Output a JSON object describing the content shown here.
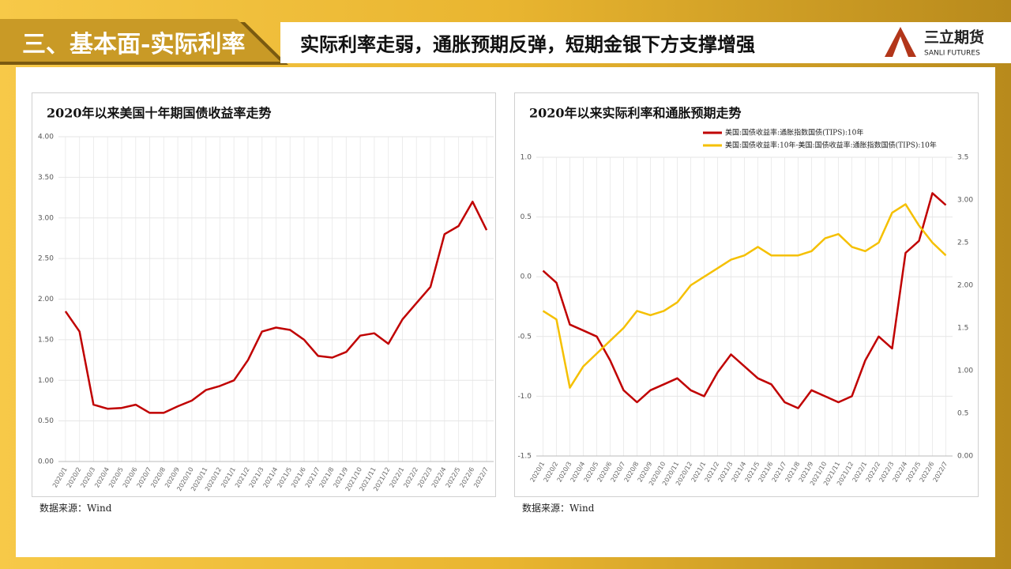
{
  "header": {
    "section": "三、基本面-实际利率",
    "title": "实际利率走弱，通胀预期反弹，短期金银下方支撑增强",
    "logo": "三立期货",
    "logo_en": "SANLI FUTURES"
  },
  "chart_data": [
    {
      "type": "line",
      "title": "2020年以来美国十年期国债收益率走势",
      "categories": [
        "2020/1",
        "2020/2",
        "2020/3",
        "2020/4",
        "2020/5",
        "2020/6",
        "2020/7",
        "2020/8",
        "2020/9",
        "2020/10",
        "2020/11",
        "2020/12",
        "2021/1",
        "2021/2",
        "2021/3",
        "2021/4",
        "2021/5",
        "2021/6",
        "2021/7",
        "2021/8",
        "2021/9",
        "2021/10",
        "2021/11",
        "2021/12",
        "2022/1",
        "2022/2",
        "2022/3",
        "2022/4",
        "2022/5",
        "2022/6",
        "2022/7"
      ],
      "values": [
        1.85,
        1.6,
        0.7,
        0.65,
        0.66,
        0.7,
        0.6,
        0.6,
        0.68,
        0.75,
        0.88,
        0.93,
        1.0,
        1.25,
        1.6,
        1.65,
        1.62,
        1.5,
        1.3,
        1.28,
        1.35,
        1.55,
        1.58,
        1.45,
        1.75,
        1.95,
        2.15,
        2.8,
        2.9,
        3.2,
        2.85
      ],
      "color": "#c00000",
      "ylim": [
        0,
        4
      ],
      "yticks": [
        {
          "value": 0,
          "label": "0.00"
        },
        {
          "value": 0.5,
          "label": "0.50"
        },
        {
          "value": 1,
          "label": "1.00"
        },
        {
          "value": 1.5,
          "label": "1.50"
        },
        {
          "value": 2,
          "label": "2.00"
        },
        {
          "value": 2.5,
          "label": "2.50"
        },
        {
          "value": 3,
          "label": "3.00"
        },
        {
          "value": 3.5,
          "label": "3.50"
        },
        {
          "value": 4,
          "label": "4.00"
        }
      ],
      "grid": true
    },
    {
      "type": "line",
      "title": "2020年以来实际利率和通胀预期走势",
      "categories": [
        "2020/1",
        "2020/2",
        "2020/3",
        "2020/4",
        "2020/5",
        "2020/6",
        "2020/7",
        "2020/8",
        "2020/9",
        "2020/10",
        "2020/11",
        "2020/12",
        "2021/1",
        "2021/2",
        "2021/3",
        "2021/4",
        "2021/5",
        "2021/6",
        "2021/7",
        "2021/8",
        "2021/9",
        "2021/10",
        "2021/11",
        "2021/12",
        "2022/1",
        "2022/2",
        "2022/3",
        "2022/4",
        "2022/5",
        "2022/6",
        "2022/7"
      ],
      "series": [
        {
          "name": "美国:国债收益率:通胀指数国债(TIPS):10年",
          "color": "#c00000",
          "values": [
            0.05,
            -0.05,
            -0.4,
            -0.45,
            -0.5,
            -0.7,
            -0.95,
            -1.05,
            -0.95,
            -0.9,
            -0.85,
            -0.95,
            -1.0,
            -0.8,
            -0.65,
            -0.75,
            -0.85,
            -0.9,
            -1.05,
            -1.1,
            -0.95,
            -1.0,
            -1.05,
            -1.0,
            -0.7,
            -0.5,
            -0.6,
            0.2,
            0.3,
            0.7,
            0.6
          ]
        },
        {
          "name": "美国:国债收益率:10年-美国:国债收益率:通胀指数国债(TIPS):10年",
          "color": "#f5c000",
          "axis": "y2",
          "values": [
            1.7,
            1.6,
            0.8,
            1.05,
            1.2,
            1.35,
            1.5,
            1.7,
            1.65,
            1.7,
            1.8,
            2.0,
            2.1,
            2.2,
            2.3,
            2.35,
            2.45,
            2.35,
            2.35,
            2.35,
            2.4,
            2.55,
            2.6,
            2.45,
            2.4,
            2.5,
            2.85,
            2.95,
            2.7,
            2.5,
            2.35
          ]
        }
      ],
      "ylim": [
        -1.5,
        1
      ],
      "yticks": [
        -1.5,
        {
          "value": -1,
          "label": "-1.0"
        },
        -0.5,
        {
          "value": 0,
          "label": "0.0"
        },
        0.5,
        {
          "value": 1,
          "label": "1.0"
        }
      ],
      "y2lim": [
        0,
        3.5
      ],
      "y2ticks": [
        {
          "value": 0,
          "label": "0.00"
        },
        0.5,
        {
          "value": 1,
          "label": "1.00"
        },
        1.5,
        {
          "value": 2,
          "label": "2.00"
        },
        2.5,
        {
          "value": 3,
          "label": "3.00"
        },
        3.5
      ],
      "grid": true
    }
  ],
  "sources": [
    "数据来源：Wind",
    "数据来源：Wind"
  ]
}
